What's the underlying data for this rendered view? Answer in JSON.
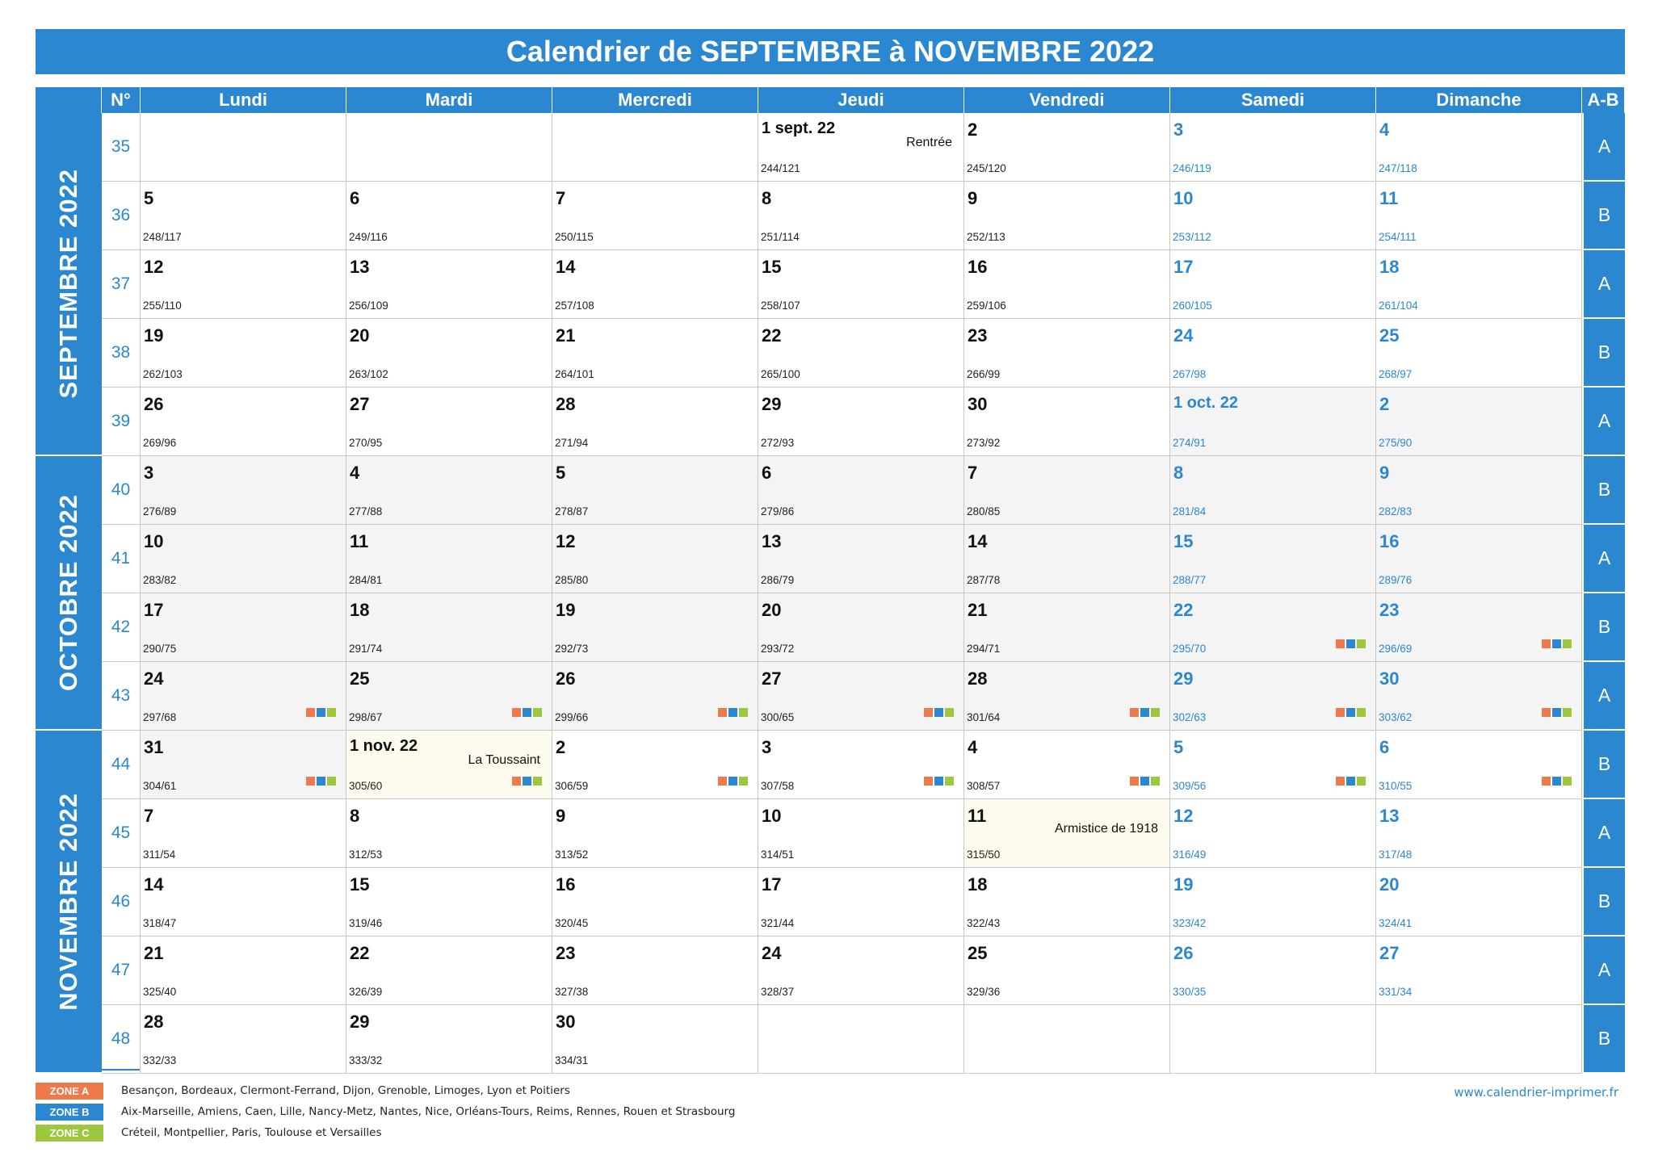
{
  "title": "Calendrier de SEPTEMBRE à NOVEMBRE 2022",
  "colors": {
    "primary": "#2a87d0",
    "zone_a": "#ee7a4b",
    "zone_b": "#2a87d0",
    "zone_c": "#9cc73f"
  },
  "headers": {
    "weeknum": "N°",
    "days": [
      "Lundi",
      "Mardi",
      "Mercredi",
      "Jeudi",
      "Vendredi",
      "Samedi",
      "Dimanche"
    ],
    "ab": "A-B"
  },
  "months": [
    {
      "label": "SEPTEMBRE 2022",
      "first_row": 0,
      "row_span": 5
    },
    {
      "label": "OCTOBRE 2022",
      "first_row": 5,
      "row_span": 4
    },
    {
      "label": "NOVEMBRE 2022",
      "first_row": 9,
      "row_span": 5
    }
  ],
  "weeks": [
    {
      "num": "35",
      "ab": "A",
      "days": [
        null,
        null,
        null,
        {
          "d": "1 sept. 22",
          "sub": "244/121",
          "m": "sep",
          "hname": "Rentrée"
        },
        {
          "d": "2",
          "sub": "245/120",
          "m": "sep"
        },
        {
          "d": "3",
          "sub": "246/119",
          "m": "sep"
        },
        {
          "d": "4",
          "sub": "247/118",
          "m": "sep"
        }
      ]
    },
    {
      "num": "36",
      "ab": "B",
      "days": [
        {
          "d": "5",
          "sub": "248/117",
          "m": "sep"
        },
        {
          "d": "6",
          "sub": "249/116",
          "m": "sep"
        },
        {
          "d": "7",
          "sub": "250/115",
          "m": "sep"
        },
        {
          "d": "8",
          "sub": "251/114",
          "m": "sep"
        },
        {
          "d": "9",
          "sub": "252/113",
          "m": "sep"
        },
        {
          "d": "10",
          "sub": "253/112",
          "m": "sep"
        },
        {
          "d": "11",
          "sub": "254/111",
          "m": "sep"
        }
      ]
    },
    {
      "num": "37",
      "ab": "A",
      "days": [
        {
          "d": "12",
          "sub": "255/110",
          "m": "sep"
        },
        {
          "d": "13",
          "sub": "256/109",
          "m": "sep"
        },
        {
          "d": "14",
          "sub": "257/108",
          "m": "sep"
        },
        {
          "d": "15",
          "sub": "258/107",
          "m": "sep"
        },
        {
          "d": "16",
          "sub": "259/106",
          "m": "sep"
        },
        {
          "d": "17",
          "sub": "260/105",
          "m": "sep"
        },
        {
          "d": "18",
          "sub": "261/104",
          "m": "sep"
        }
      ]
    },
    {
      "num": "38",
      "ab": "B",
      "days": [
        {
          "d": "19",
          "sub": "262/103",
          "m": "sep"
        },
        {
          "d": "20",
          "sub": "263/102",
          "m": "sep"
        },
        {
          "d": "21",
          "sub": "264/101",
          "m": "sep"
        },
        {
          "d": "22",
          "sub": "265/100",
          "m": "sep"
        },
        {
          "d": "23",
          "sub": "266/99",
          "m": "sep"
        },
        {
          "d": "24",
          "sub": "267/98",
          "m": "sep"
        },
        {
          "d": "25",
          "sub": "268/97",
          "m": "sep"
        }
      ]
    },
    {
      "num": "39",
      "ab": "A",
      "days": [
        {
          "d": "26",
          "sub": "269/96",
          "m": "sep"
        },
        {
          "d": "27",
          "sub": "270/95",
          "m": "sep"
        },
        {
          "d": "28",
          "sub": "271/94",
          "m": "sep"
        },
        {
          "d": "29",
          "sub": "272/93",
          "m": "sep"
        },
        {
          "d": "30",
          "sub": "273/92",
          "m": "sep"
        },
        {
          "d": "1 oct. 22",
          "sub": "274/91",
          "m": "oct"
        },
        {
          "d": "2",
          "sub": "275/90",
          "m": "oct"
        }
      ]
    },
    {
      "num": "40",
      "ab": "B",
      "days": [
        {
          "d": "3",
          "sub": "276/89",
          "m": "oct"
        },
        {
          "d": "4",
          "sub": "277/88",
          "m": "oct"
        },
        {
          "d": "5",
          "sub": "278/87",
          "m": "oct"
        },
        {
          "d": "6",
          "sub": "279/86",
          "m": "oct"
        },
        {
          "d": "7",
          "sub": "280/85",
          "m": "oct"
        },
        {
          "d": "8",
          "sub": "281/84",
          "m": "oct"
        },
        {
          "d": "9",
          "sub": "282/83",
          "m": "oct"
        }
      ]
    },
    {
      "num": "41",
      "ab": "A",
      "days": [
        {
          "d": "10",
          "sub": "283/82",
          "m": "oct"
        },
        {
          "d": "11",
          "sub": "284/81",
          "m": "oct"
        },
        {
          "d": "12",
          "sub": "285/80",
          "m": "oct"
        },
        {
          "d": "13",
          "sub": "286/79",
          "m": "oct"
        },
        {
          "d": "14",
          "sub": "287/78",
          "m": "oct"
        },
        {
          "d": "15",
          "sub": "288/77",
          "m": "oct"
        },
        {
          "d": "16",
          "sub": "289/76",
          "m": "oct"
        }
      ]
    },
    {
      "num": "42",
      "ab": "B",
      "days": [
        {
          "d": "17",
          "sub": "290/75",
          "m": "oct"
        },
        {
          "d": "18",
          "sub": "291/74",
          "m": "oct"
        },
        {
          "d": "19",
          "sub": "292/73",
          "m": "oct"
        },
        {
          "d": "20",
          "sub": "293/72",
          "m": "oct"
        },
        {
          "d": "21",
          "sub": "294/71",
          "m": "oct"
        },
        {
          "d": "22",
          "sub": "295/70",
          "m": "oct",
          "zones": true
        },
        {
          "d": "23",
          "sub": "296/69",
          "m": "oct",
          "zones": true
        }
      ]
    },
    {
      "num": "43",
      "ab": "A",
      "days": [
        {
          "d": "24",
          "sub": "297/68",
          "m": "oct",
          "zones": true
        },
        {
          "d": "25",
          "sub": "298/67",
          "m": "oct",
          "zones": true
        },
        {
          "d": "26",
          "sub": "299/66",
          "m": "oct",
          "zones": true
        },
        {
          "d": "27",
          "sub": "300/65",
          "m": "oct",
          "zones": true
        },
        {
          "d": "28",
          "sub": "301/64",
          "m": "oct",
          "zones": true
        },
        {
          "d": "29",
          "sub": "302/63",
          "m": "oct",
          "zones": true
        },
        {
          "d": "30",
          "sub": "303/62",
          "m": "oct",
          "zones": true
        }
      ]
    },
    {
      "num": "44",
      "ab": "B",
      "days": [
        {
          "d": "31",
          "sub": "304/61",
          "m": "oct",
          "zones": true
        },
        {
          "d": "1 nov. 22",
          "sub": "305/60",
          "m": "nov",
          "zones": true,
          "hname": "La Toussaint",
          "holiday": true
        },
        {
          "d": "2",
          "sub": "306/59",
          "m": "nov",
          "zones": true
        },
        {
          "d": "3",
          "sub": "307/58",
          "m": "nov",
          "zones": true
        },
        {
          "d": "4",
          "sub": "308/57",
          "m": "nov",
          "zones": true
        },
        {
          "d": "5",
          "sub": "309/56",
          "m": "nov",
          "zones": true
        },
        {
          "d": "6",
          "sub": "310/55",
          "m": "nov",
          "zones": true
        }
      ]
    },
    {
      "num": "45",
      "ab": "A",
      "days": [
        {
          "d": "7",
          "sub": "311/54",
          "m": "nov"
        },
        {
          "d": "8",
          "sub": "312/53",
          "m": "nov"
        },
        {
          "d": "9",
          "sub": "313/52",
          "m": "nov"
        },
        {
          "d": "10",
          "sub": "314/51",
          "m": "nov"
        },
        {
          "d": "11",
          "sub": "315/50",
          "m": "nov",
          "hname": "Armistice de 1918",
          "holiday": true
        },
        {
          "d": "12",
          "sub": "316/49",
          "m": "nov"
        },
        {
          "d": "13",
          "sub": "317/48",
          "m": "nov"
        }
      ]
    },
    {
      "num": "46",
      "ab": "B",
      "days": [
        {
          "d": "14",
          "sub": "318/47",
          "m": "nov"
        },
        {
          "d": "15",
          "sub": "319/46",
          "m": "nov"
        },
        {
          "d": "16",
          "sub": "320/45",
          "m": "nov"
        },
        {
          "d": "17",
          "sub": "321/44",
          "m": "nov"
        },
        {
          "d": "18",
          "sub": "322/43",
          "m": "nov"
        },
        {
          "d": "19",
          "sub": "323/42",
          "m": "nov"
        },
        {
          "d": "20",
          "sub": "324/41",
          "m": "nov"
        }
      ]
    },
    {
      "num": "47",
      "ab": "A",
      "days": [
        {
          "d": "21",
          "sub": "325/40",
          "m": "nov"
        },
        {
          "d": "22",
          "sub": "326/39",
          "m": "nov"
        },
        {
          "d": "23",
          "sub": "327/38",
          "m": "nov"
        },
        {
          "d": "24",
          "sub": "328/37",
          "m": "nov"
        },
        {
          "d": "25",
          "sub": "329/36",
          "m": "nov"
        },
        {
          "d": "26",
          "sub": "330/35",
          "m": "nov"
        },
        {
          "d": "27",
          "sub": "331/34",
          "m": "nov"
        }
      ]
    },
    {
      "num": "48",
      "ab": "B",
      "days": [
        {
          "d": "28",
          "sub": "332/33",
          "m": "nov"
        },
        {
          "d": "29",
          "sub": "333/32",
          "m": "nov"
        },
        {
          "d": "30",
          "sub": "334/31",
          "m": "nov"
        },
        null,
        null,
        null,
        null
      ]
    }
  ],
  "legend": [
    {
      "zone": "ZONE A",
      "color": "#ee7a4b",
      "text": "Besançon, Bordeaux, Clermont-Ferrand, Dijon, Grenoble, Limoges, Lyon et Poitiers"
    },
    {
      "zone": "ZONE B",
      "color": "#2a87d0",
      "text": "Aix-Marseille, Amiens, Caen, Lille, Nancy-Metz, Nantes, Nice, Orléans-Tours, Reims, Rennes, Rouen et Strasbourg"
    },
    {
      "zone": "ZONE C",
      "color": "#9cc73f",
      "text": "Créteil, Montpellier, Paris, Toulouse et Versailles"
    }
  ],
  "website": "www.calendrier-imprimer.fr"
}
